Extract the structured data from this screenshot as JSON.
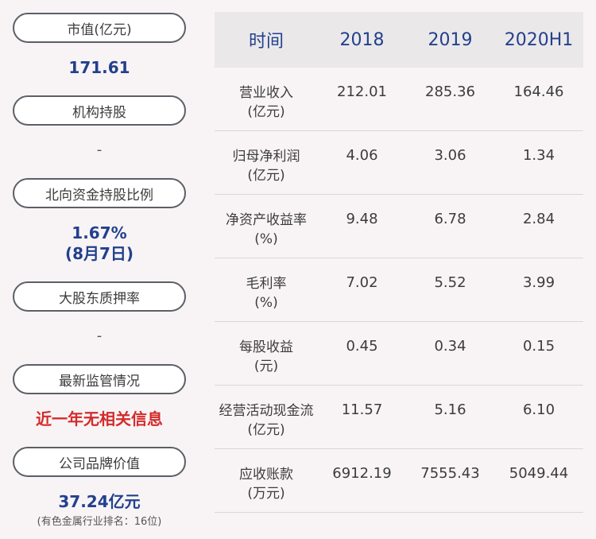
{
  "left": {
    "blocks": [
      {
        "label": "市值(亿元)",
        "value": "171.61"
      },
      {
        "label": "机构持股",
        "value": "-"
      },
      {
        "label": "北向资金持股比例",
        "value": "1.67%",
        "value2": "(8月7日)"
      },
      {
        "label": "大股东质押率",
        "value": "-"
      },
      {
        "label": "最新监管情况",
        "value": "近一年无相关信息"
      },
      {
        "label": "公司品牌价值",
        "value": "37.24亿元",
        "note": "(有色金属行业排名：16位)"
      }
    ]
  },
  "table": {
    "headers": [
      "时间",
      "2018",
      "2019",
      "2020H1"
    ],
    "rows": [
      {
        "label1": "营业收入",
        "label2": "(亿元)",
        "values": [
          "212.01",
          "285.36",
          "164.46"
        ]
      },
      {
        "label1": "归母净利润",
        "label2": "(亿元)",
        "values": [
          "4.06",
          "3.06",
          "1.34"
        ]
      },
      {
        "label1": "净资产收益率",
        "label2": "(%)",
        "values": [
          "9.48",
          "6.78",
          "2.84"
        ]
      },
      {
        "label1": "毛利率",
        "label2": "(%)",
        "values": [
          "7.02",
          "5.52",
          "3.99"
        ]
      },
      {
        "label1": "每股收益",
        "label2": "(元)",
        "values": [
          "0.45",
          "0.34",
          "0.15"
        ]
      },
      {
        "label1": "经营活动现金流",
        "label2": "(亿元)",
        "values": [
          "11.57",
          "5.16",
          "6.10"
        ]
      },
      {
        "label1": "应收账款",
        "label2": "(万元)",
        "values": [
          "6912.19",
          "7555.43",
          "5049.44"
        ]
      }
    ]
  },
  "colors": {
    "accent": "#23408e",
    "alert": "#d42b2b",
    "header_bg": "#ebe8ea",
    "page_bg": "#f8f4f5"
  }
}
